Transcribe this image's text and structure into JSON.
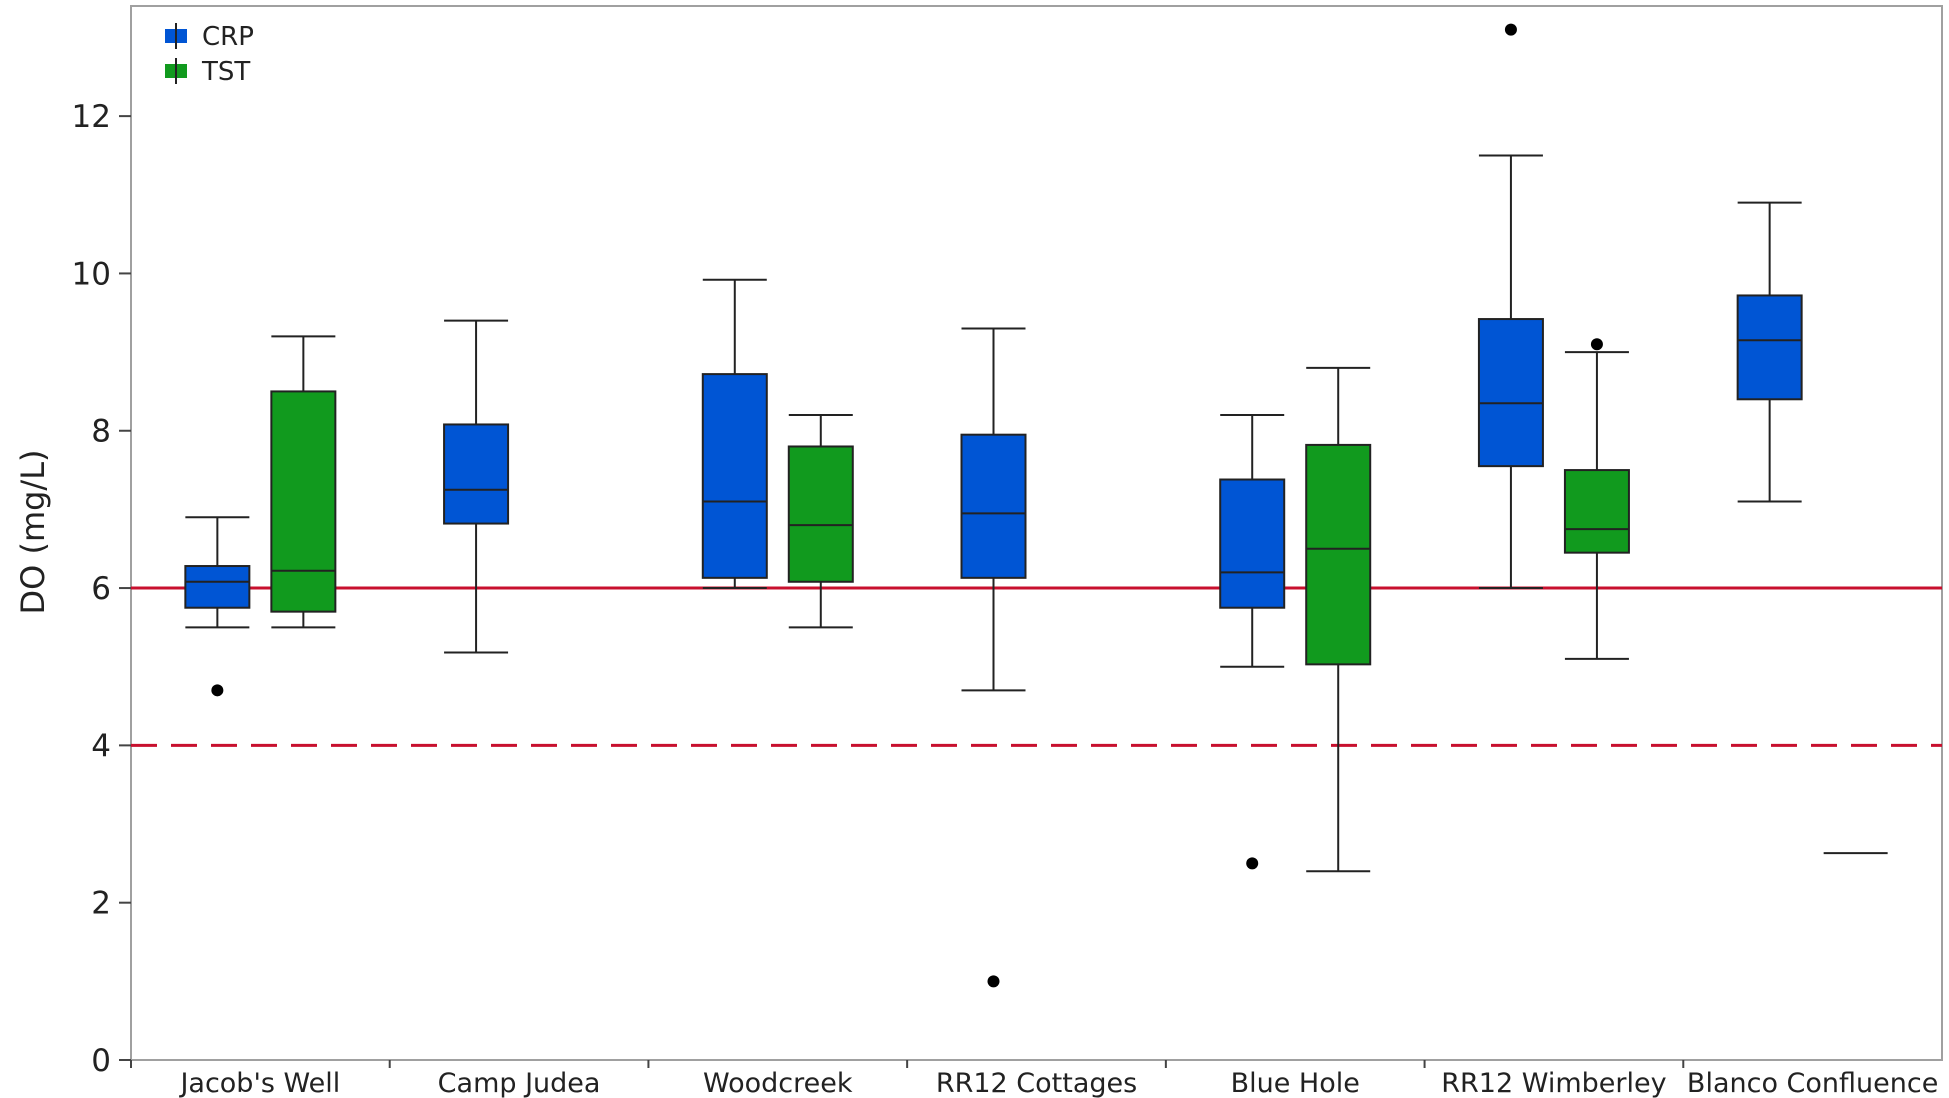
{
  "chart_data": {
    "type": "box",
    "ylabel": "DO (mg/L)",
    "xlabel": "",
    "ylim": [
      0,
      13.4
    ],
    "yticks": [
      0,
      2,
      4,
      6,
      8,
      10,
      12
    ],
    "categories": [
      "Jacob's Well",
      "Camp Judea",
      "Woodcreek",
      "RR12 Cottages",
      "Blue Hole",
      "RR12 Wimberley",
      "Blanco Confluence"
    ],
    "legend": {
      "placement": "top-left"
    },
    "series": [
      {
        "name": "CRP",
        "color": "#0055d4",
        "boxes": [
          {
            "category": "Jacob's Well",
            "whisker_low": 5.5,
            "q1": 5.75,
            "median": 6.08,
            "q3": 6.28,
            "whisker_high": 6.9,
            "outliers": [
              4.7
            ]
          },
          {
            "category": "Camp Judea",
            "whisker_low": 5.18,
            "q1": 6.82,
            "median": 7.25,
            "q3": 8.08,
            "whisker_high": 9.4,
            "outliers": []
          },
          {
            "category": "Woodcreek",
            "whisker_low": 6.0,
            "q1": 6.13,
            "median": 7.1,
            "q3": 8.72,
            "whisker_high": 9.92,
            "outliers": []
          },
          {
            "category": "RR12 Cottages",
            "whisker_low": 4.7,
            "q1": 6.13,
            "median": 6.95,
            "q3": 7.95,
            "whisker_high": 9.3,
            "outliers": [
              1.0
            ]
          },
          {
            "category": "Blue Hole",
            "whisker_low": 5.0,
            "q1": 5.75,
            "median": 6.2,
            "q3": 7.38,
            "whisker_high": 8.2,
            "outliers": [
              2.5
            ]
          },
          {
            "category": "RR12 Wimberley",
            "whisker_low": 6.0,
            "q1": 7.55,
            "median": 8.35,
            "q3": 9.42,
            "whisker_high": 11.5,
            "outliers": [
              13.1
            ]
          },
          {
            "category": "Blanco Confluence",
            "whisker_low": 7.1,
            "q1": 8.4,
            "median": 9.15,
            "q3": 9.72,
            "whisker_high": 10.9,
            "outliers": []
          }
        ]
      },
      {
        "name": "TST",
        "color": "#119a1e",
        "boxes": [
          {
            "category": "Jacob's Well",
            "whisker_low": 5.5,
            "q1": 5.7,
            "median": 6.22,
            "q3": 8.5,
            "whisker_high": 9.2,
            "outliers": []
          },
          {
            "category": "Woodcreek",
            "whisker_low": 5.5,
            "q1": 6.08,
            "median": 6.8,
            "q3": 7.8,
            "whisker_high": 8.2,
            "outliers": []
          },
          {
            "category": "Blue Hole",
            "whisker_low": 2.4,
            "q1": 5.03,
            "median": 6.5,
            "q3": 7.82,
            "whisker_high": 8.8,
            "outliers": []
          },
          {
            "category": "RR12 Wimberley",
            "whisker_low": 5.1,
            "q1": 6.45,
            "median": 6.75,
            "q3": 7.5,
            "whisker_high": 9.0,
            "outliers": [
              9.1
            ]
          },
          {
            "category": "Blanco Confluence",
            "single_value": 2.63
          }
        ]
      }
    ],
    "reference_lines": [
      {
        "y": 6,
        "style": "solid",
        "color": "#c8102e"
      },
      {
        "y": 4,
        "style": "dashed",
        "color": "#c8102e"
      }
    ]
  }
}
